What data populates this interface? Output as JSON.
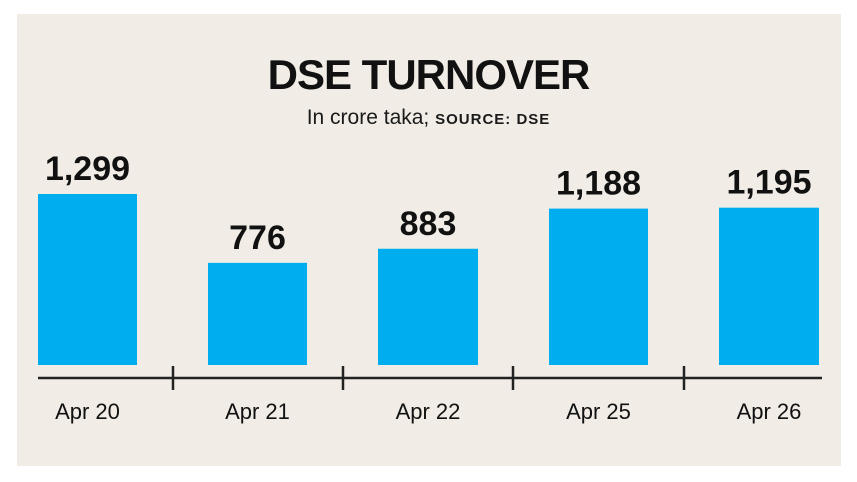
{
  "title": "DSE TURNOVER",
  "subtitle": "In crore taka;",
  "source": "SOURCE: DSE",
  "colors": {
    "bar": "#00aeef",
    "background": "#f1ede6",
    "axis": "#222222"
  },
  "chart_data": {
    "type": "bar",
    "title": "DSE TURNOVER",
    "ylabel": "In crore taka",
    "categories": [
      "Apr 20",
      "Apr 21",
      "Apr 22",
      "Apr 25",
      "Apr 26"
    ],
    "values": [
      1299,
      776,
      883,
      1188,
      1195
    ],
    "value_labels": [
      "1,299",
      "776",
      "883",
      "1,188",
      "1,195"
    ],
    "ylim": [
      0,
      1299
    ],
    "grid": false,
    "legend": "none"
  }
}
